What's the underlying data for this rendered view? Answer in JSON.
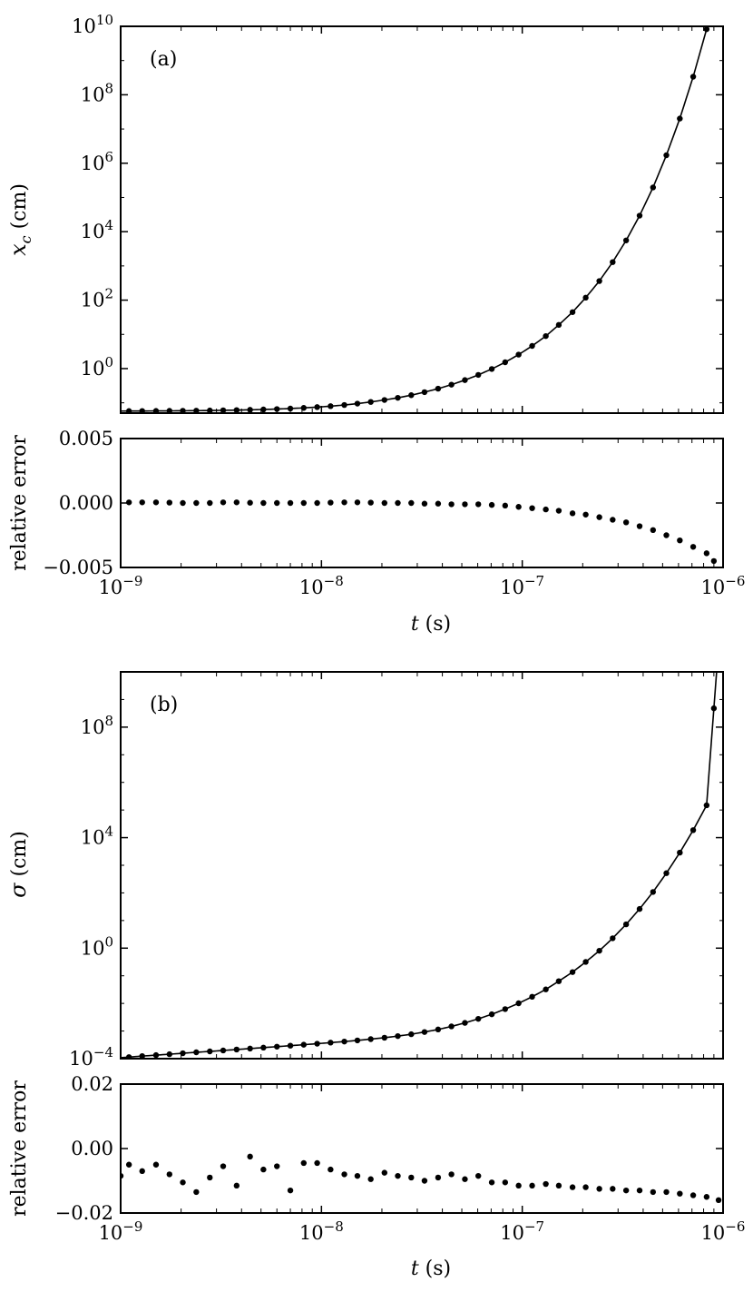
{
  "chart_data": [
    {
      "id": "a-top",
      "type": "line",
      "panel_label": "(a)",
      "xscale": "log",
      "yscale": "log",
      "xlim": [
        1e-09,
        1e-06
      ],
      "ylim": [
        0.05,
        10000000000.0
      ],
      "ylabel": "x_c (cm)",
      "ylabel_main": "x",
      "ylabel_sub": "c",
      "ylabel_rest": " (cm)",
      "yticks": [
        1,
        100,
        10000,
        1000000,
        100000000,
        10000000000
      ],
      "ytick_labels": [
        {
          "base": "10",
          "exp": "0"
        },
        {
          "base": "10",
          "exp": "2"
        },
        {
          "base": "10",
          "exp": "4"
        },
        {
          "base": "10",
          "exp": "6"
        },
        {
          "base": "10",
          "exp": "8"
        },
        {
          "base": "10",
          "exp": "10"
        }
      ],
      "series": [
        {
          "style": "line+markers",
          "x": [
            1.1e-09,
            1.28e-09,
            1.5e-09,
            1.75e-09,
            2.04e-09,
            2.38e-09,
            2.78e-09,
            3.24e-09,
            3.78e-09,
            4.41e-09,
            5.14e-09,
            6e-09,
            7e-09,
            8.16e-09,
            9.52e-09,
            1.11e-08,
            1.3e-08,
            1.51e-08,
            1.76e-08,
            2.06e-08,
            2.4e-08,
            2.8e-08,
            3.26e-08,
            3.81e-08,
            4.44e-08,
            5.18e-08,
            6.04e-08,
            7.05e-08,
            8.22e-08,
            9.59e-08,
            1.12e-07,
            1.31e-07,
            1.52e-07,
            1.78e-07,
            2.07e-07,
            2.42e-07,
            2.82e-07,
            3.29e-07,
            3.84e-07,
            4.48e-07,
            5.22e-07,
            6.09e-07,
            7.1e-07,
            8.28e-07
          ],
          "y": [
            0.0575,
            0.0577,
            0.0579,
            0.0582,
            0.0585,
            0.059,
            0.0596,
            0.0603,
            0.0612,
            0.0624,
            0.0638,
            0.0657,
            0.068,
            0.071,
            0.0749,
            0.0798,
            0.0863,
            0.0947,
            0.106,
            0.121,
            0.14,
            0.167,
            0.205,
            0.259,
            0.339,
            0.461,
            0.654,
            0.974,
            1.53,
            2.56,
            4.59,
            8.9,
            18.9,
            44.6,
            118,
            361,
            1290,
            5560,
            29400,
            196000,
            1710000,
            20200000,
            337000000,
            8240000000
          ]
        }
      ]
    },
    {
      "id": "a-error",
      "type": "scatter",
      "xscale": "log",
      "xlim": [
        1e-09,
        1e-06
      ],
      "ylim": [
        -0.005,
        0.005
      ],
      "ylabel": "relative error",
      "xlabel": "t (s)",
      "xlabel_main": "t",
      "xlabel_rest": " (s)",
      "yticks": [
        -0.005,
        0.0,
        0.005
      ],
      "ytick_labels": [
        "−0.005",
        "0.000",
        "0.005"
      ],
      "xticks": [
        1e-09,
        1e-08,
        1e-07,
        1e-06
      ],
      "xtick_labels": [
        {
          "base": "10",
          "exp": "−9"
        },
        {
          "base": "10",
          "exp": "−8"
        },
        {
          "base": "10",
          "exp": "−7"
        },
        {
          "base": "10",
          "exp": "−6"
        }
      ],
      "series": [
        {
          "style": "markers",
          "x": [
            1.1e-09,
            1.28e-09,
            1.5e-09,
            1.75e-09,
            2.04e-09,
            2.38e-09,
            2.78e-09,
            3.24e-09,
            3.78e-09,
            4.41e-09,
            5.14e-09,
            6e-09,
            7e-09,
            8.16e-09,
            9.52e-09,
            1.11e-08,
            1.3e-08,
            1.51e-08,
            1.76e-08,
            2.06e-08,
            2.4e-08,
            2.8e-08,
            3.26e-08,
            3.81e-08,
            4.44e-08,
            5.18e-08,
            6.04e-08,
            7.05e-08,
            8.22e-08,
            9.59e-08,
            1.12e-07,
            1.31e-07,
            1.52e-07,
            1.78e-07,
            2.07e-07,
            2.42e-07,
            2.82e-07,
            3.29e-07,
            3.84e-07,
            4.48e-07,
            5.22e-07,
            6.09e-07,
            7.1e-07,
            8.28e-07,
            9e-07
          ],
          "y": [
            5e-05,
            5e-05,
            5e-05,
            3e-05,
            0.0,
            0.0,
            0.0,
            5e-05,
            5e-05,
            2e-05,
            0.0,
            0.0,
            0.0,
            0.0,
            0.0,
            3e-05,
            5e-05,
            5e-05,
            3e-05,
            0.0,
            0.0,
            0.0,
            -5e-05,
            -5e-05,
            -0.0001,
            -0.0001,
            -0.0001,
            -0.00015,
            -0.0002,
            -0.0003,
            -0.0004,
            -0.0005,
            -0.0006,
            -0.0008,
            -0.0009,
            -0.0011,
            -0.0013,
            -0.0015,
            -0.0018,
            -0.0021,
            -0.0025,
            -0.0029,
            -0.0034,
            -0.0039,
            -0.0045
          ]
        }
      ]
    },
    {
      "id": "b-top",
      "type": "line",
      "panel_label": "(b)",
      "xscale": "log",
      "yscale": "log",
      "xlim": [
        1e-09,
        1e-06
      ],
      "ylim": [
        0.0001,
        10000000000
      ],
      "ylabel": "σ (cm)",
      "ylabel_main": "σ",
      "ylabel_sub": "",
      "ylabel_rest": " (cm)",
      "yticks": [
        0.0001,
        1,
        10000,
        100000000
      ],
      "ytick_labels": [
        {
          "base": "10",
          "exp": "−4"
        },
        {
          "base": "10",
          "exp": "0"
        },
        {
          "base": "10",
          "exp": "4"
        },
        {
          "base": "10",
          "exp": "8"
        }
      ],
      "series": [
        {
          "style": "line+markers",
          "x": [
            1.1e-09,
            1.28e-09,
            1.5e-09,
            1.75e-09,
            2.04e-09,
            2.38e-09,
            2.78e-09,
            3.24e-09,
            3.78e-09,
            4.41e-09,
            5.14e-09,
            6e-09,
            7e-09,
            8.16e-09,
            9.52e-09,
            1.11e-08,
            1.3e-08,
            1.51e-08,
            1.76e-08,
            2.06e-08,
            2.4e-08,
            2.8e-08,
            3.26e-08,
            3.81e-08,
            4.44e-08,
            5.18e-08,
            6.04e-08,
            7.05e-08,
            8.22e-08,
            9.59e-08,
            1.12e-07,
            1.31e-07,
            1.52e-07,
            1.78e-07,
            2.07e-07,
            2.42e-07,
            2.82e-07,
            3.29e-07,
            3.84e-07,
            4.48e-07,
            5.22e-07,
            6.09e-07,
            7.1e-07,
            8.28e-07,
            9e-07
          ],
          "y": [
            0.000114,
            0.000124,
            0.000134,
            0.000145,
            0.000157,
            0.00017,
            0.000183,
            0.000198,
            0.000214,
            0.000232,
            0.000251,
            0.000272,
            0.000295,
            0.00032,
            0.000348,
            0.00038,
            0.000416,
            0.000458,
            0.000509,
            0.000573,
            0.000656,
            0.000767,
            0.000921,
            0.00114,
            0.00147,
            0.00197,
            0.00276,
            0.00404,
            0.00623,
            0.0101,
            0.0174,
            0.0321,
            0.0636,
            0.136,
            0.317,
            0.804,
            2.28,
            7.27,
            26.2,
            108,
            517,
            2870,
            18700,
            148000,
            480000000
          ]
        }
      ]
    },
    {
      "id": "b-error",
      "type": "scatter",
      "xscale": "log",
      "xlim": [
        1e-09,
        1e-06
      ],
      "ylim": [
        -0.02,
        0.02
      ],
      "ylabel": "relative error",
      "xlabel": "t (s)",
      "xlabel_main": "t",
      "xlabel_rest": " (s)",
      "yticks": [
        -0.02,
        0.0,
        0.02
      ],
      "ytick_labels": [
        "−0.02",
        "0.00",
        "0.02"
      ],
      "xticks": [
        1e-09,
        1e-08,
        1e-07,
        1e-06
      ],
      "xtick_labels": [
        {
          "base": "10",
          "exp": "−9"
        },
        {
          "base": "10",
          "exp": "−8"
        },
        {
          "base": "10",
          "exp": "−7"
        },
        {
          "base": "10",
          "exp": "−6"
        }
      ],
      "series": [
        {
          "style": "markers",
          "x": [
            1e-09,
            1.1e-09,
            1.28e-09,
            1.5e-09,
            1.75e-09,
            2.04e-09,
            2.38e-09,
            2.78e-09,
            3.24e-09,
            3.78e-09,
            4.41e-09,
            5.14e-09,
            6e-09,
            7e-09,
            8.16e-09,
            9.52e-09,
            1.11e-08,
            1.3e-08,
            1.51e-08,
            1.76e-08,
            2.06e-08,
            2.4e-08,
            2.8e-08,
            3.26e-08,
            3.81e-08,
            4.44e-08,
            5.18e-08,
            6.04e-08,
            7.05e-08,
            8.22e-08,
            9.59e-08,
            1.12e-07,
            1.31e-07,
            1.52e-07,
            1.78e-07,
            2.07e-07,
            2.42e-07,
            2.82e-07,
            3.29e-07,
            3.84e-07,
            4.48e-07,
            5.22e-07,
            6.09e-07,
            7.1e-07,
            8.28e-07,
            9.5e-07
          ],
          "y": [
            -0.0085,
            -0.005,
            -0.007,
            -0.005,
            -0.008,
            -0.0105,
            -0.0135,
            -0.009,
            -0.0055,
            -0.0115,
            -0.0025,
            -0.0065,
            -0.0055,
            -0.013,
            -0.0045,
            -0.0045,
            -0.0065,
            -0.008,
            -0.0085,
            -0.0095,
            -0.0075,
            -0.0085,
            -0.009,
            -0.01,
            -0.009,
            -0.008,
            -0.0095,
            -0.0085,
            -0.0105,
            -0.0105,
            -0.0115,
            -0.0115,
            -0.011,
            -0.0115,
            -0.012,
            -0.012,
            -0.0125,
            -0.0125,
            -0.013,
            -0.013,
            -0.0135,
            -0.0135,
            -0.014,
            -0.0145,
            -0.015,
            -0.016
          ]
        }
      ]
    }
  ]
}
